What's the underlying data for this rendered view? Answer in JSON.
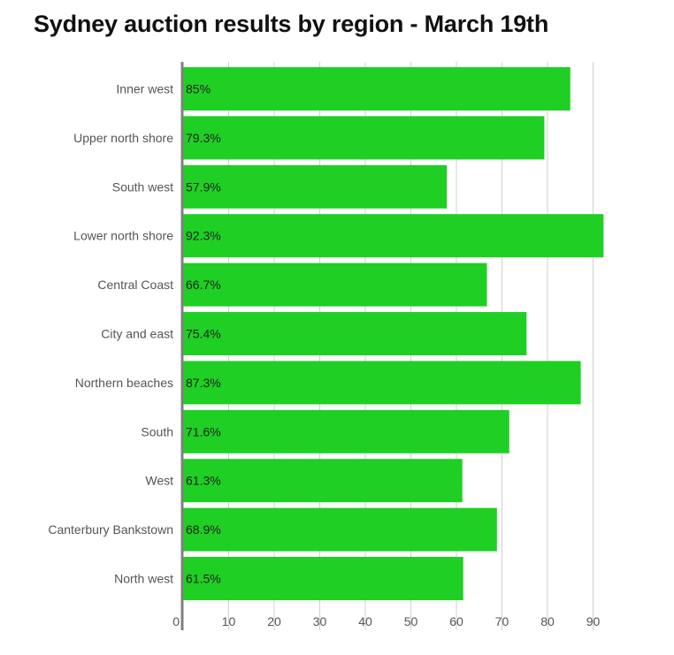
{
  "chart_data": {
    "type": "bar",
    "orientation": "horizontal",
    "title": "Sydney auction results by region - March 19th",
    "categories": [
      "Inner west",
      "Upper north shore",
      "South west",
      "Lower north shore",
      "Central Coast",
      "City and east",
      "Northern beaches",
      "South",
      "West",
      "Canterbury Bankstown",
      "North west"
    ],
    "values": [
      85,
      79.3,
      57.9,
      92.3,
      66.7,
      75.4,
      87.3,
      71.6,
      61.3,
      68.9,
      61.5
    ],
    "value_labels": [
      "85%",
      "79.3%",
      "57.9%",
      "92.3%",
      "66.7%",
      "75.4%",
      "87.3%",
      "71.6%",
      "61.3%",
      "68.9%",
      "61.5%"
    ],
    "x_ticks": [
      0,
      10,
      20,
      30,
      40,
      50,
      60,
      70,
      80,
      90
    ],
    "xlim": [
      0,
      95
    ],
    "xlabel": "",
    "ylabel": "",
    "grid": true,
    "legend": "none",
    "colors": {
      "bar": "#1fcf24",
      "grid": "#d0d0d0",
      "axis": "#808080"
    }
  }
}
